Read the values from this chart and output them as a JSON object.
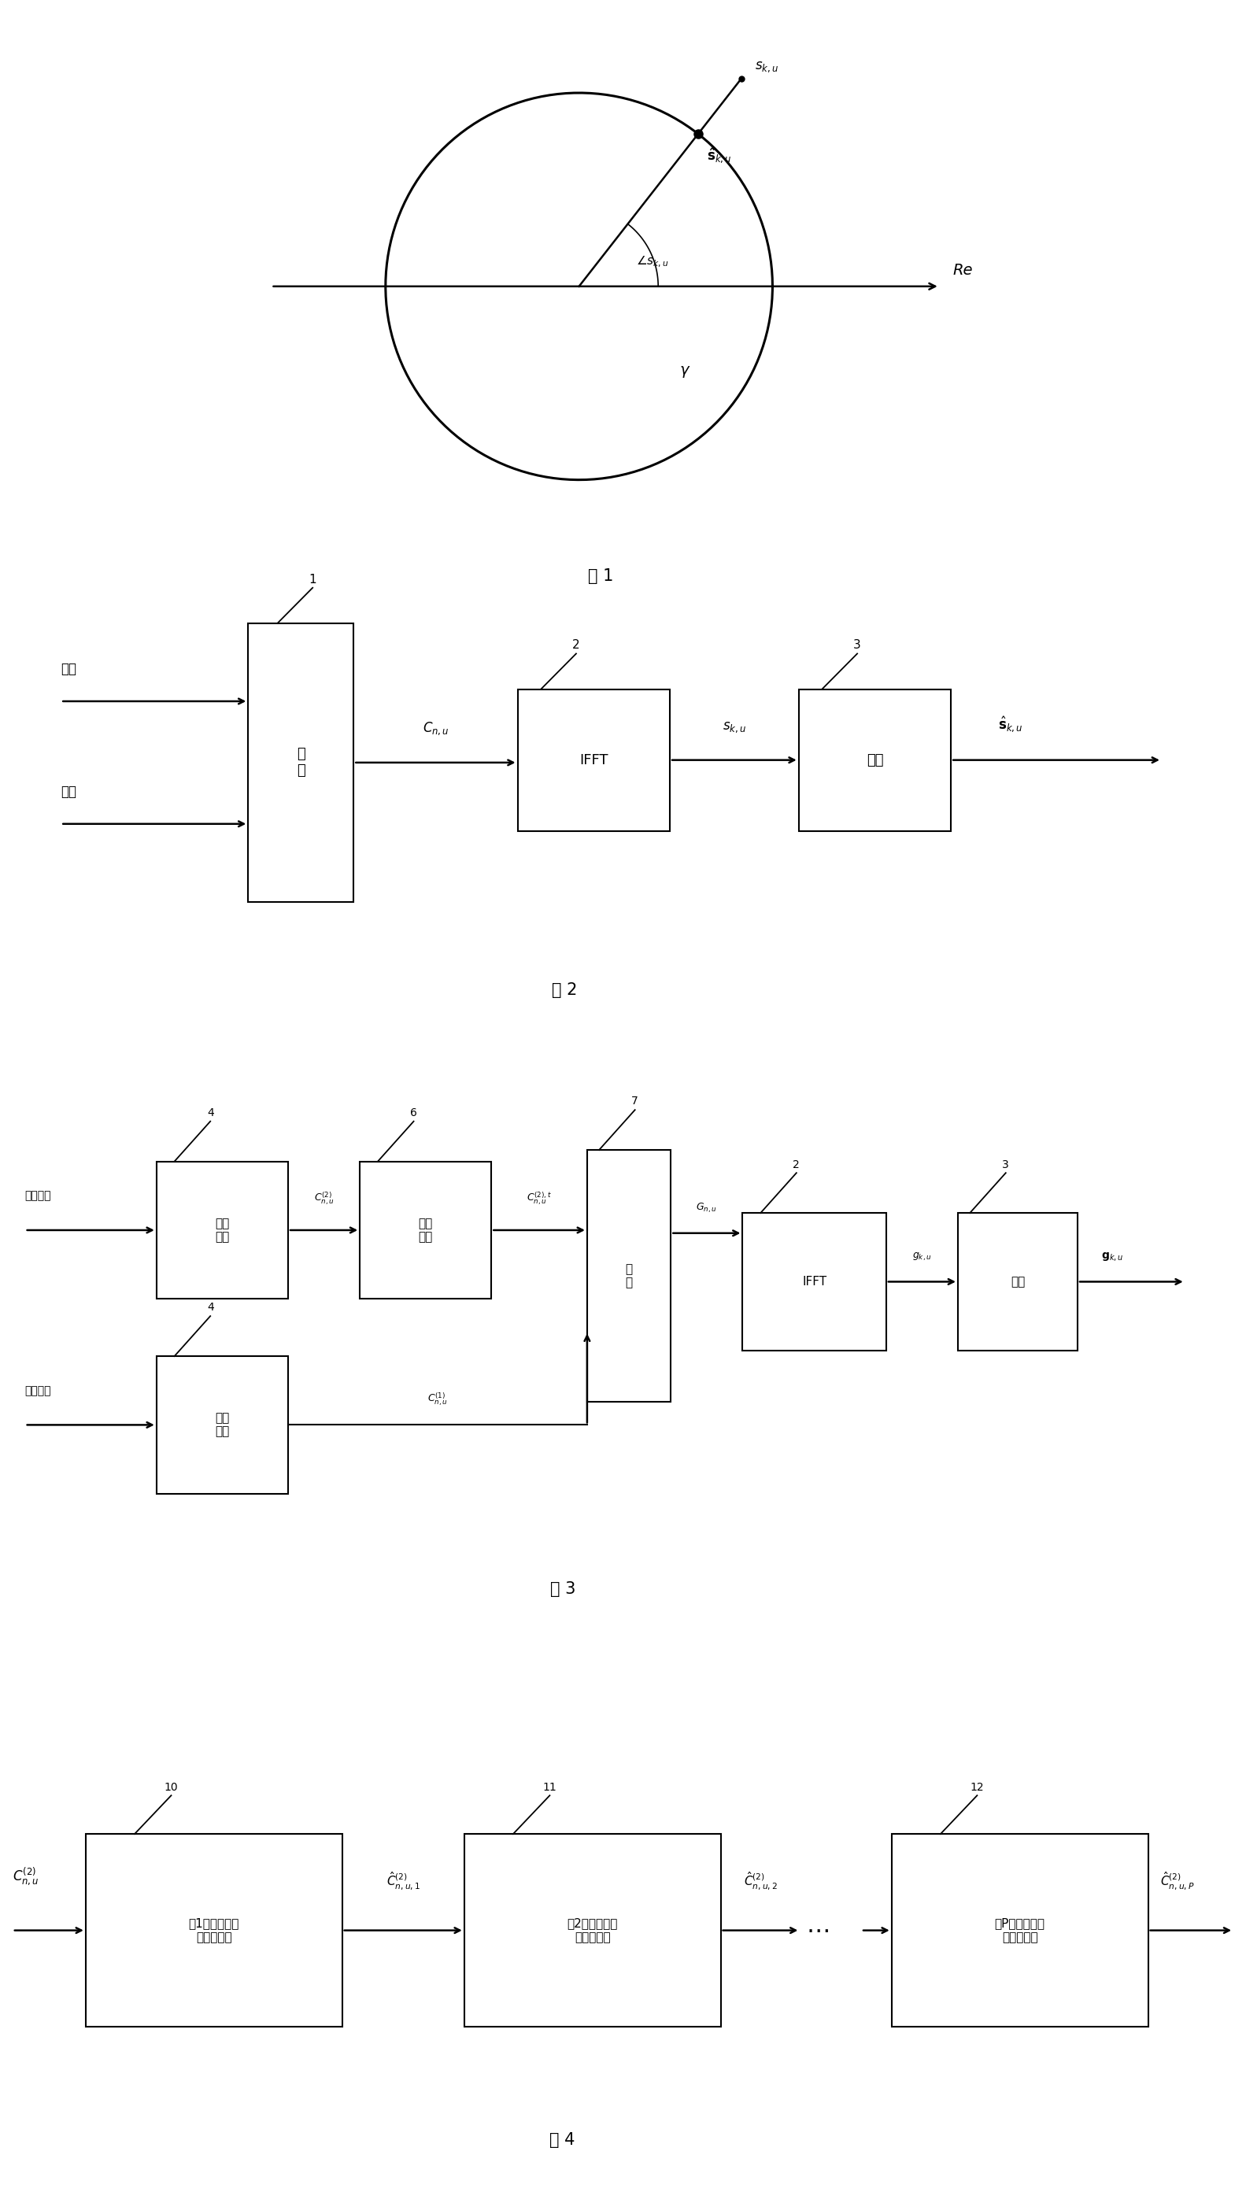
{
  "fig1_caption": "图 1",
  "fig2_caption": "图 2",
  "fig3_caption": "图 3",
  "fig4_caption": "图 4",
  "bg_color": "#ffffff"
}
